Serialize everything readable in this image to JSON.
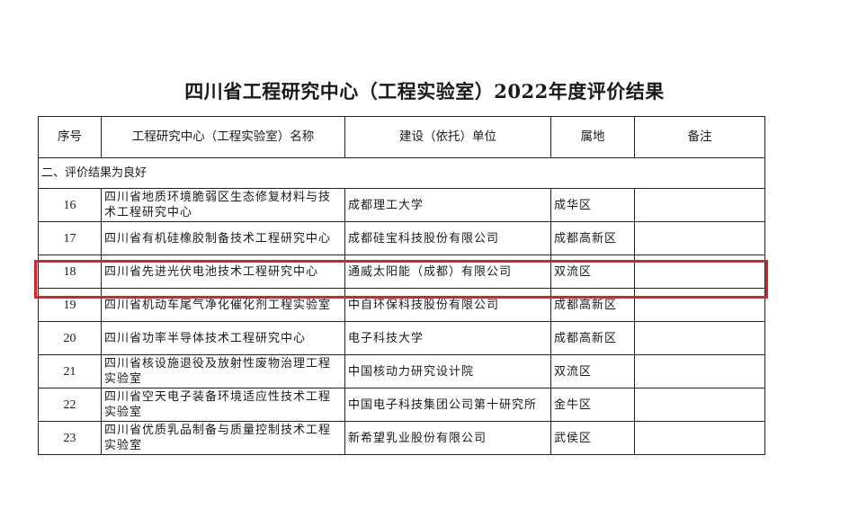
{
  "title": "四川省工程研究中心（工程实验室）2022年度评价结果",
  "headers": [
    "序号",
    "工程研究中心（工程实验室）名称",
    "建设（依托）单位",
    "属地",
    "备注"
  ],
  "section": "二、评价结果为良好",
  "highlight_color": "#d8232a",
  "rows": [
    {
      "no": "16",
      "name": "四川省地质环境脆弱区生态修复材料与技术工程研究中心",
      "unit": "成都理工大学",
      "loc": "成华区",
      "note": ""
    },
    {
      "no": "17",
      "name": "四川省有机硅橡胶制备技术工程研究中心",
      "unit": "成都硅宝科技股份有限公司",
      "loc": "成都高新区",
      "note": ""
    },
    {
      "no": "18",
      "name": "四川省先进光伏电池技术工程研究中心",
      "unit": "通威太阳能（成都）有限公司",
      "loc": "双流区",
      "note": ""
    },
    {
      "no": "19",
      "name": "四川省机动车尾气净化催化剂工程实验室",
      "unit": "中自环保科技股份有限公司",
      "loc": "成都高新区",
      "note": ""
    },
    {
      "no": "20",
      "name": "四川省功率半导体技术工程研究中心",
      "unit": "电子科技大学",
      "loc": "成都高新区",
      "note": ""
    },
    {
      "no": "21",
      "name": "四川省核设施退役及放射性废物治理工程实验室",
      "unit": "中国核动力研究设计院",
      "loc": "双流区",
      "note": ""
    },
    {
      "no": "22",
      "name": "四川省空天电子装备环境适应性技术工程实验室",
      "unit": "中国电子科技集团公司第十研究所",
      "loc": "金牛区",
      "note": ""
    },
    {
      "no": "23",
      "name": "四川省优质乳品制备与质量控制技术工程实验室",
      "unit": "新希望乳业股份有限公司",
      "loc": "武侯区",
      "note": ""
    }
  ]
}
